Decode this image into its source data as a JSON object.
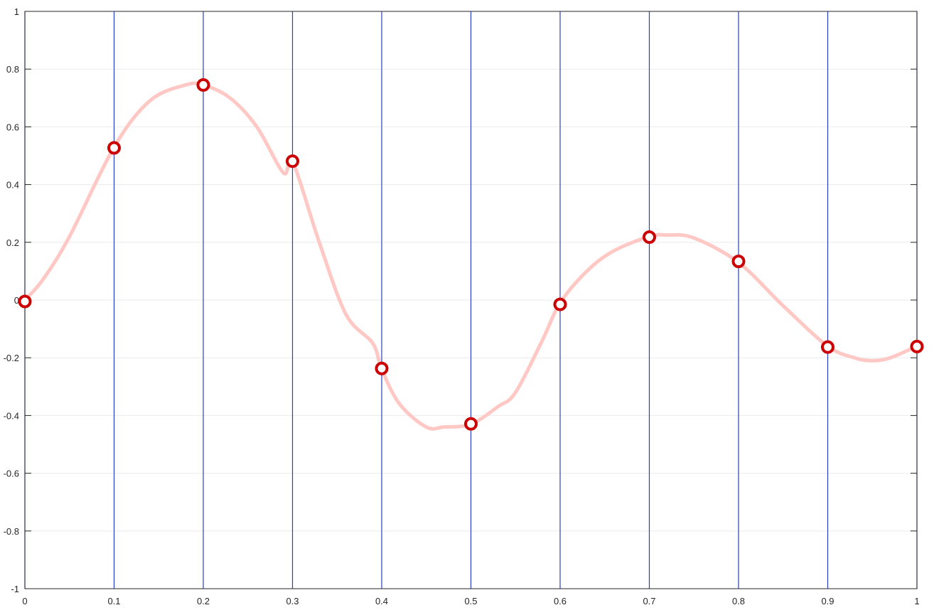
{
  "chart_data": {
    "type": "line",
    "title": "",
    "xlabel": "",
    "ylabel": "",
    "xlim": [
      0,
      1
    ],
    "ylim": [
      -1,
      1
    ],
    "x_ticks": [
      0,
      0.1,
      0.2,
      0.3,
      0.4,
      0.5,
      0.6,
      0.7,
      0.8,
      0.9,
      1
    ],
    "x_tick_labels": [
      "0",
      "0.1",
      "0.2",
      "0.3",
      "0.4",
      "0.5",
      "0.6",
      "0.7",
      "0.8",
      "0.9",
      "1"
    ],
    "y_ticks": [
      -1,
      -0.8,
      -0.6,
      -0.4,
      -0.2,
      0,
      0.2,
      0.4,
      0.6,
      0.8,
      1
    ],
    "y_tick_labels": [
      "-1",
      "-0.8",
      "-0.6",
      "-0.4",
      "-0.2",
      "0",
      "0.2",
      "0.4",
      "0.6",
      "0.8",
      "1"
    ],
    "grid": "horizontal",
    "vertical_lines": [
      0,
      0.1,
      0.2,
      0.3,
      0.4,
      0.5,
      0.6,
      0.7,
      0.8,
      0.9,
      1
    ],
    "series": [
      {
        "style": "smooth-line",
        "color": "#ffc8c4",
        "x": [
          0,
          0.02,
          0.05,
          0.1,
          0.14,
          0.18,
          0.2,
          0.23,
          0.26,
          0.29,
          0.3,
          0.33,
          0.36,
          0.39,
          0.4,
          0.42,
          0.45,
          0.47,
          0.5,
          0.53,
          0.55,
          0.58,
          0.6,
          0.63,
          0.66,
          0.7,
          0.72,
          0.75,
          0.8,
          0.85,
          0.9,
          0.93,
          0.95,
          0.97,
          1
        ],
        "values": [
          0,
          0.07,
          0.22,
          0.53,
          0.69,
          0.745,
          0.745,
          0.7,
          0.6,
          0.44,
          0.48,
          0.2,
          -0.05,
          -0.15,
          -0.24,
          -0.36,
          -0.44,
          -0.44,
          -0.43,
          -0.37,
          -0.32,
          -0.14,
          -0.01,
          0.1,
          0.17,
          0.22,
          0.225,
          0.215,
          0.13,
          -0.02,
          -0.16,
          -0.2,
          -0.21,
          -0.2,
          -0.16
        ]
      },
      {
        "style": "markers",
        "marker": "circle",
        "color": "#cc0000",
        "x": [
          0,
          0.1,
          0.2,
          0.3,
          0.4,
          0.5,
          0.6,
          0.7,
          0.8,
          0.9,
          1
        ],
        "values": [
          -0.005,
          0.527,
          0.745,
          0.481,
          -0.237,
          -0.429,
          -0.015,
          0.218,
          0.134,
          -0.163,
          -0.161
        ]
      }
    ]
  }
}
